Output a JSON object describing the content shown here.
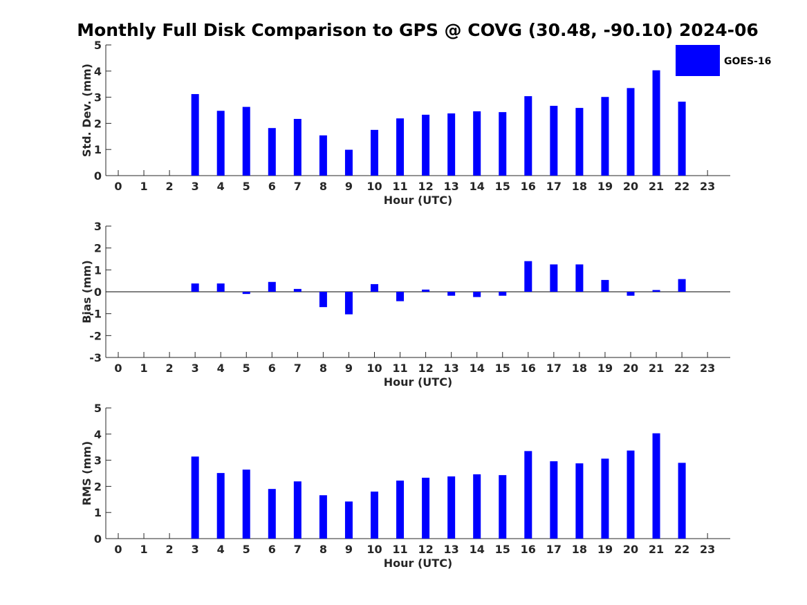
{
  "title": "Monthly Full Disk Comparison to GPS @ COVG (30.48, -90.10) 2024-06",
  "legend": {
    "label": "GOES-16",
    "color": "#0000ff"
  },
  "chart_data": [
    {
      "type": "bar",
      "name": "std-dev",
      "categories": [
        "0",
        "1",
        "2",
        "3",
        "4",
        "5",
        "6",
        "7",
        "8",
        "9",
        "10",
        "11",
        "12",
        "13",
        "14",
        "15",
        "16",
        "17",
        "18",
        "19",
        "20",
        "21",
        "22",
        "23"
      ],
      "series": [
        {
          "name": "GOES-16",
          "values": [
            null,
            null,
            null,
            3.12,
            2.48,
            2.63,
            1.82,
            2.17,
            1.54,
            0.99,
            1.75,
            2.19,
            2.33,
            2.38,
            2.46,
            2.43,
            3.04,
            2.67,
            2.59,
            3.01,
            3.35,
            4.03,
            2.83,
            null
          ]
        }
      ],
      "xlabel": "Hour (UTC)",
      "ylabel": "Std. Dev. (mm)",
      "ylim": [
        0,
        5
      ],
      "yticks": [
        "0",
        "1",
        "2",
        "3",
        "4",
        "5"
      ]
    },
    {
      "type": "bar",
      "name": "bias",
      "categories": [
        "0",
        "1",
        "2",
        "3",
        "4",
        "5",
        "6",
        "7",
        "8",
        "9",
        "10",
        "11",
        "12",
        "13",
        "14",
        "15",
        "16",
        "17",
        "18",
        "19",
        "20",
        "21",
        "22",
        "23"
      ],
      "series": [
        {
          "name": "GOES-16",
          "values": [
            null,
            null,
            null,
            0.38,
            0.38,
            -0.1,
            0.45,
            0.13,
            -0.7,
            -1.03,
            0.35,
            -0.43,
            0.1,
            -0.18,
            -0.24,
            -0.18,
            1.4,
            1.25,
            1.25,
            0.54,
            -0.18,
            0.08,
            0.58,
            null
          ]
        }
      ],
      "xlabel": "Hour (UTC)",
      "ylabel": "Bias (mm)",
      "ylim": [
        -3,
        3
      ],
      "yticks": [
        "-3",
        "-2",
        "-1",
        "0",
        "1",
        "2",
        "3"
      ]
    },
    {
      "type": "bar",
      "name": "rms",
      "categories": [
        "0",
        "1",
        "2",
        "3",
        "4",
        "5",
        "6",
        "7",
        "8",
        "9",
        "10",
        "11",
        "12",
        "13",
        "14",
        "15",
        "16",
        "17",
        "18",
        "19",
        "20",
        "21",
        "22",
        "23"
      ],
      "series": [
        {
          "name": "GOES-16",
          "values": [
            null,
            null,
            null,
            3.14,
            2.51,
            2.64,
            1.9,
            2.19,
            1.66,
            1.42,
            1.8,
            2.22,
            2.33,
            2.38,
            2.46,
            2.43,
            3.35,
            2.96,
            2.88,
            3.06,
            3.37,
            4.03,
            2.9,
            null
          ]
        }
      ],
      "xlabel": "Hour (UTC)",
      "ylabel": "RMS (mm)",
      "ylim": [
        0,
        5
      ],
      "yticks": [
        "0",
        "1",
        "2",
        "3",
        "4",
        "5"
      ]
    }
  ]
}
